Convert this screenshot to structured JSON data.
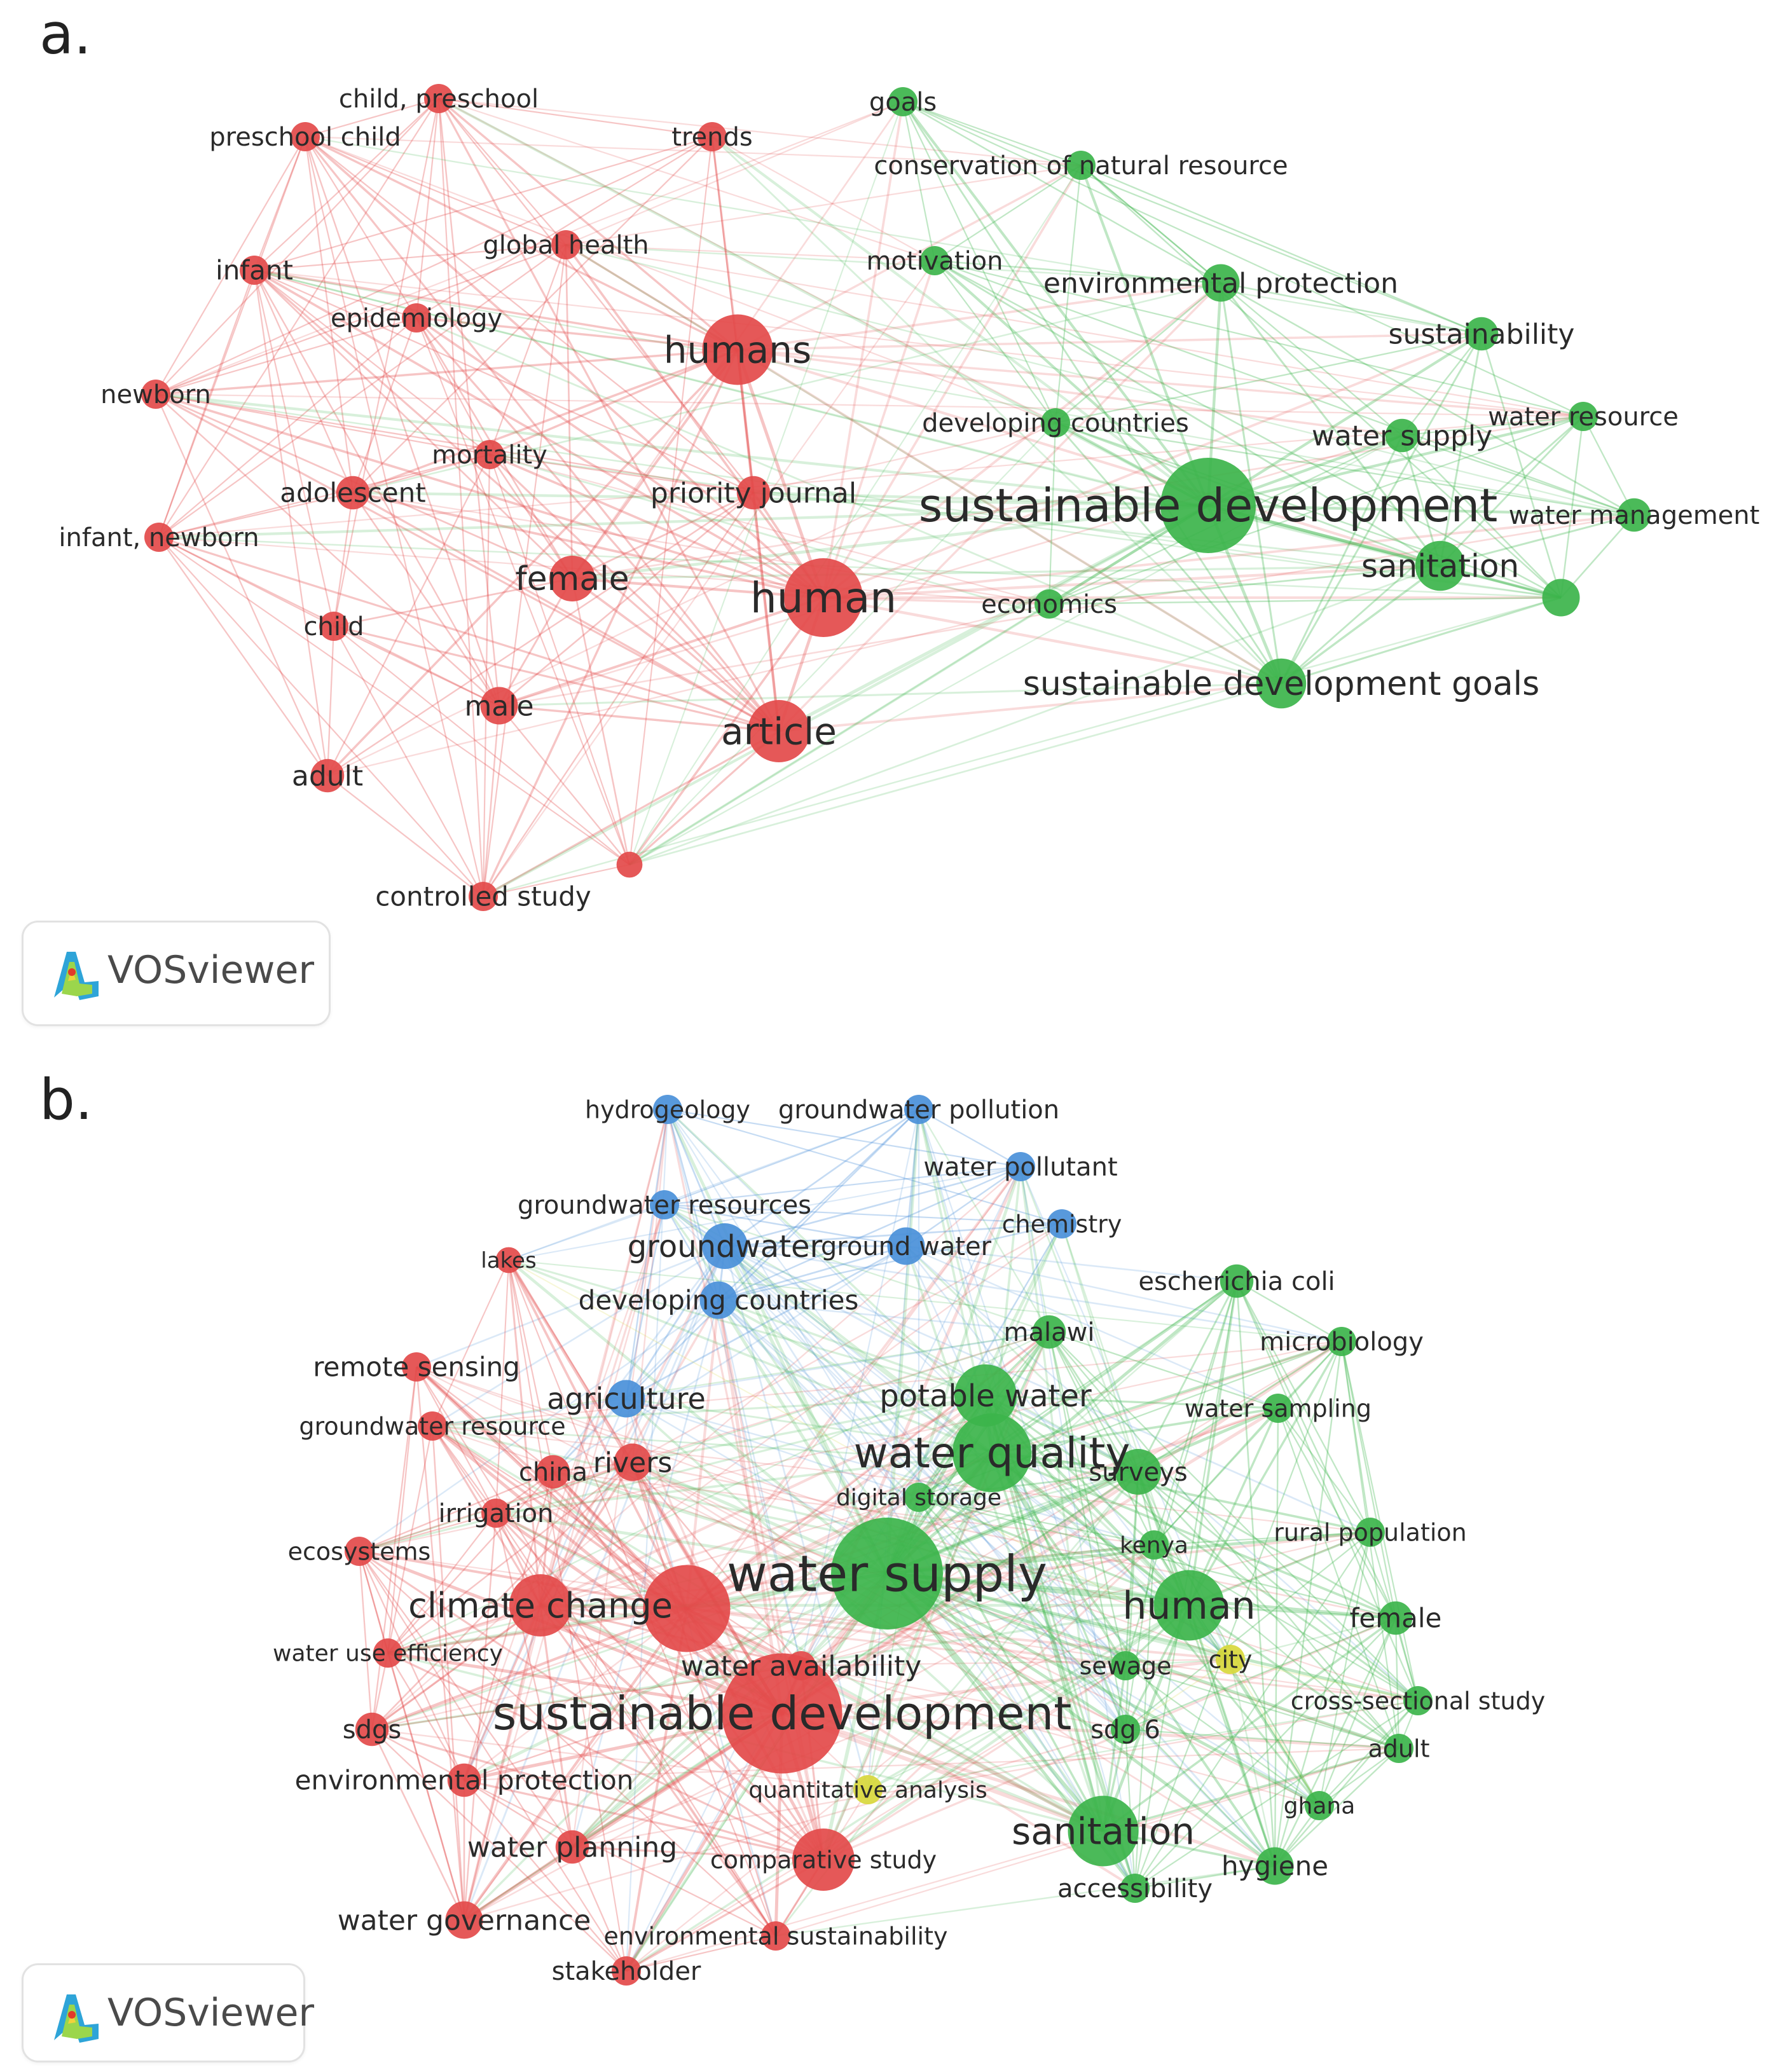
{
  "panel_a": {
    "label": "a.",
    "logo_text": "VOSviewer",
    "clusters": [
      {
        "id": "red",
        "color": "#e34a4a"
      },
      {
        "id": "green",
        "color": "#3cb44b"
      }
    ],
    "nodes": [
      {
        "label": "child, preschool",
        "cluster": "red",
        "weight": 2
      },
      {
        "label": "preschool child",
        "cluster": "red",
        "weight": 2
      },
      {
        "label": "trends",
        "cluster": "red",
        "weight": 2
      },
      {
        "label": "global health",
        "cluster": "red",
        "weight": 2
      },
      {
        "label": "infant",
        "cluster": "red",
        "weight": 2
      },
      {
        "label": "epidemiology",
        "cluster": "red",
        "weight": 2
      },
      {
        "label": "humans",
        "cluster": "red",
        "weight": 7
      },
      {
        "label": "newborn",
        "cluster": "red",
        "weight": 2
      },
      {
        "label": "mortality",
        "cluster": "red",
        "weight": 2
      },
      {
        "label": "adolescent",
        "cluster": "red",
        "weight": 2.5
      },
      {
        "label": "priority journal",
        "cluster": "red",
        "weight": 2.5
      },
      {
        "label": "infant, newborn",
        "cluster": "red",
        "weight": 2
      },
      {
        "label": "female",
        "cluster": "red",
        "weight": 4
      },
      {
        "label": "human",
        "cluster": "red",
        "weight": 8
      },
      {
        "label": "child",
        "cluster": "red",
        "weight": 2
      },
      {
        "label": "male",
        "cluster": "red",
        "weight": 3
      },
      {
        "label": "article",
        "cluster": "red",
        "weight": 6
      },
      {
        "label": "adult",
        "cluster": "red",
        "weight": 2.5
      },
      {
        "label": "controlled study",
        "cluster": "red",
        "weight": 2
      },
      {
        "label": "",
        "cluster": "red",
        "weight": 1.6
      },
      {
        "label": "goals",
        "cluster": "green",
        "weight": 2
      },
      {
        "label": "conservation of natural resource",
        "cluster": "green",
        "weight": 2
      },
      {
        "label": "motivation",
        "cluster": "green",
        "weight": 2
      },
      {
        "label": "environmental protection",
        "cluster": "green",
        "weight": 3
      },
      {
        "label": "sustainability",
        "cluster": "green",
        "weight": 2.5
      },
      {
        "label": "developing countries",
        "cluster": "green",
        "weight": 2
      },
      {
        "label": "water supply",
        "cluster": "green",
        "weight": 2.5
      },
      {
        "label": "water resource",
        "cluster": "green",
        "weight": 2
      },
      {
        "label": "sustainable development",
        "cluster": "green",
        "weight": 10
      },
      {
        "label": "water management",
        "cluster": "green",
        "weight": 2.5
      },
      {
        "label": "sanitation",
        "cluster": "green",
        "weight": 4.5
      },
      {
        "label": "economics",
        "cluster": "green",
        "weight": 2
      },
      {
        "label": "sustainable development goals",
        "cluster": "green",
        "weight": 4.5
      },
      {
        "label": "",
        "cluster": "green",
        "weight": 3
      }
    ]
  },
  "panel_b": {
    "label": "b.",
    "logo_text": "VOSviewer",
    "clusters": [
      {
        "id": "red",
        "color": "#e34a4a"
      },
      {
        "id": "green",
        "color": "#3cb44b"
      },
      {
        "id": "blue",
        "color": "#4a90d9"
      },
      {
        "id": "yellow",
        "color": "#d8d83c"
      }
    ],
    "nodes": [
      {
        "label": "hydrogeology",
        "cluster": "blue",
        "weight": 2
      },
      {
        "label": "groundwater pollution",
        "cluster": "blue",
        "weight": 2
      },
      {
        "label": "water pollutant",
        "cluster": "blue",
        "weight": 2
      },
      {
        "label": "groundwater resources",
        "cluster": "blue",
        "weight": 2
      },
      {
        "label": "chemistry",
        "cluster": "blue",
        "weight": 2
      },
      {
        "label": "groundwater",
        "cluster": "blue",
        "weight": 4
      },
      {
        "label": "ground water",
        "cluster": "blue",
        "weight": 3
      },
      {
        "label": "developing countries",
        "cluster": "blue",
        "weight": 3
      },
      {
        "label": "agriculture",
        "cluster": "blue",
        "weight": 3
      },
      {
        "label": "lakes",
        "cluster": "red",
        "weight": 1.6
      },
      {
        "label": "remote sensing",
        "cluster": "red",
        "weight": 2
      },
      {
        "label": "groundwater resource",
        "cluster": "red",
        "weight": 2
      },
      {
        "label": "china",
        "cluster": "red",
        "weight": 2.5
      },
      {
        "label": "rivers",
        "cluster": "red",
        "weight": 3
      },
      {
        "label": "irrigation",
        "cluster": "red",
        "weight": 2
      },
      {
        "label": "ecosystems",
        "cluster": "red",
        "weight": 2
      },
      {
        "label": "climate change",
        "cluster": "red",
        "weight": 6
      },
      {
        "label": "water use efficiency",
        "cluster": "red",
        "weight": 2
      },
      {
        "label": "sdgs",
        "cluster": "red",
        "weight": 2.5
      },
      {
        "label": "sustainable development",
        "cluster": "red",
        "weight": 13
      },
      {
        "label": "environmental protection",
        "cluster": "red",
        "weight": 2.5
      },
      {
        "label": "water planning",
        "cluster": "red",
        "weight": 2.5
      },
      {
        "label": "water governance",
        "cluster": "red",
        "weight": 3
      },
      {
        "label": "stakeholder",
        "cluster": "red",
        "weight": 2
      },
      {
        "label": "environmental sustainability",
        "cluster": "red",
        "weight": 2
      },
      {
        "label": "comparative study",
        "cluster": "red",
        "weight": 6
      },
      {
        "label": "water availability",
        "cluster": "red",
        "weight": 2
      },
      {
        "label": "",
        "cluster": "red",
        "weight": 9
      },
      {
        "label": "escherichia coli",
        "cluster": "green",
        "weight": 2.5
      },
      {
        "label": "microbiology",
        "cluster": "green",
        "weight": 2
      },
      {
        "label": "malawi",
        "cluster": "green",
        "weight": 2.5
      },
      {
        "label": "potable water",
        "cluster": "green",
        "weight": 6
      },
      {
        "label": "water sampling",
        "cluster": "green",
        "weight": 2
      },
      {
        "label": "water quality",
        "cluster": "green",
        "weight": 8
      },
      {
        "label": "surveys",
        "cluster": "green",
        "weight": 4
      },
      {
        "label": "digital storage",
        "cluster": "green",
        "weight": 2
      },
      {
        "label": "rural population",
        "cluster": "green",
        "weight": 2
      },
      {
        "label": "kenya",
        "cluster": "green",
        "weight": 2
      },
      {
        "label": "water supply",
        "cluster": "green",
        "weight": 12
      },
      {
        "label": "human",
        "cluster": "green",
        "weight": 7
      },
      {
        "label": "female",
        "cluster": "green",
        "weight": 2.5
      },
      {
        "label": "sewage",
        "cluster": "green",
        "weight": 2
      },
      {
        "label": "city",
        "cluster": "yellow",
        "weight": 2
      },
      {
        "label": "cross-sectional study",
        "cluster": "green",
        "weight": 2
      },
      {
        "label": "sdg 6",
        "cluster": "green",
        "weight": 2
      },
      {
        "label": "adult",
        "cluster": "green",
        "weight": 2
      },
      {
        "label": "quantitative analysis",
        "cluster": "yellow",
        "weight": 2
      },
      {
        "label": "sanitation",
        "cluster": "green",
        "weight": 7
      },
      {
        "label": "ghana",
        "cluster": "green",
        "weight": 2
      },
      {
        "label": "hygiene",
        "cluster": "green",
        "weight": 3
      },
      {
        "label": "accessibility",
        "cluster": "green",
        "weight": 2
      }
    ]
  }
}
